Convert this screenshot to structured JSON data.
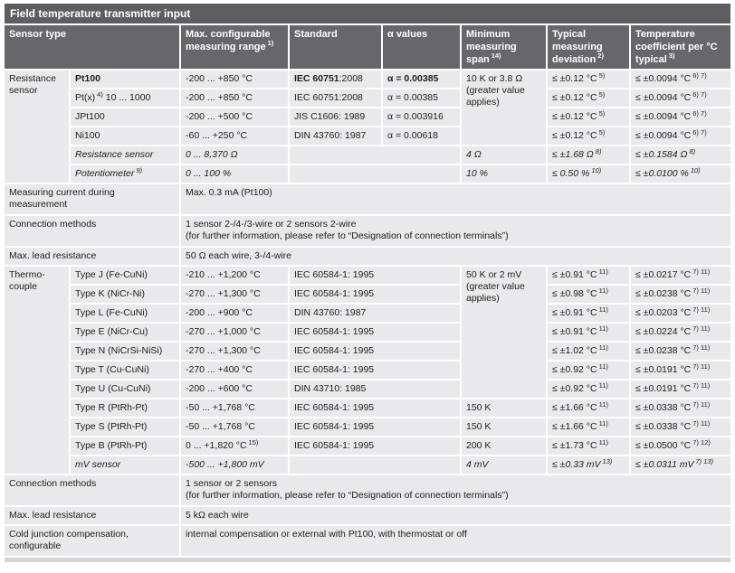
{
  "title": "Field temperature transmitter input",
  "colors": {
    "title_bg": "#5e5e62",
    "header_bg": "#67676b",
    "cell_bg": "#e9e9eb",
    "bottom_bar": "#d4d4d6",
    "text": "#1d1d1b"
  },
  "header": {
    "sensor_type": "Sensor type",
    "range": "Max. configurable measuring range",
    "range_sup": "1)",
    "standard": "Standard",
    "alpha": "α values",
    "span": "Minimum measuring span",
    "span_sup": "14)",
    "deviation": "Typical measuring deviation",
    "deviation_sup": "2)",
    "coefficient": "Temperature coefficient per °C typical",
    "coefficient_sup": "3)"
  },
  "resistance": {
    "group": "Resistance sensor",
    "shared_span": "10 K or 3.8 Ω (greater value applies)",
    "rows": [
      {
        "name": "Pt100",
        "range": "-200 ... +850 °C",
        "std_bold": "IEC 60751",
        "std": ":2008",
        "alpha": "α = 0.00385",
        "dev": "≤ ±0.12 °C",
        "dev_sup": "5)",
        "coef": "≤ ±0.0094 °C",
        "coef_sup": "6) 7)"
      },
      {
        "name": "Pt(x)",
        "name_sup": "4)",
        "name_post": " 10 ... 1000",
        "range": "-200 ... +850 °C",
        "std": "IEC 60751:2008",
        "alpha": "α = 0.00385",
        "dev": "≤ ±0.12 °C",
        "dev_sup": "5)",
        "coef": "≤ ±0.0094 °C",
        "coef_sup": "6) 7)"
      },
      {
        "name": "JPt100",
        "range": "-200 ... +500 °C",
        "std": "JIS C1606: 1989",
        "alpha": "α = 0.003916",
        "dev": "≤ ±0.12 °C",
        "dev_sup": "5)",
        "coef": "≤ ±0.0094 °C",
        "coef_sup": "6) 7)"
      },
      {
        "name": "Ni100",
        "range": "-60 ... +250 °C",
        "std": "DIN 43760: 1987",
        "alpha": "α = 0.00618",
        "dev": "≤ ±0.12 °C",
        "dev_sup": "5)",
        "coef": "≤ ±0.0094 °C",
        "coef_sup": "6) 7)"
      },
      {
        "name": "Resistance sensor",
        "range": "0 ... 8,370 Ω",
        "span": "4 Ω",
        "dev": "≤ ±1.68 Ω",
        "dev_sup": "8)",
        "coef": "≤ ±0.1584 Ω",
        "coef_sup": "8)"
      },
      {
        "name": "Potentiometer",
        "name_sup": "9)",
        "range": "0 ... 100 %",
        "span": "10 %",
        "dev": "≤ 0.50 %",
        "dev_sup": "10)",
        "coef": "≤ ±0.0100 %",
        "coef_sup": "10)"
      }
    ]
  },
  "mid_rows": [
    {
      "label": "Measuring current during measurement",
      "value": "Max. 0.3 mA (Pt100)"
    },
    {
      "label": "Connection methods",
      "value": "1 sensor 2-/4-/3-wire or 2 sensors 2-wire",
      "value2": "(for further information, please refer to “Designation of connection terminals”)"
    },
    {
      "label": "Max. lead resistance",
      "value": "50 Ω each wire, 3-/4-wire"
    }
  ],
  "thermocouple": {
    "group": "Thermo-couple",
    "shared_span": "50 K or 2 mV (greater value applies)",
    "rows": [
      {
        "name": "Type J (Fe-CuNi)",
        "range": "-210 ... +1,200 °C",
        "std": "IEC 60584-1: 1995",
        "dev": "≤ ±0.91 °C",
        "dev_sup": "11)",
        "coef": "≤ ±0.0217 °C",
        "coef_sup": "7) 11)"
      },
      {
        "name": "Type K (NiCr-Ni)",
        "range": "-270 ... +1,300 °C",
        "std": "IEC 60584-1: 1995",
        "dev": "≤ ±0.98 °C",
        "dev_sup": "11)",
        "coef": "≤ ±0.0238 °C",
        "coef_sup": "7) 11)"
      },
      {
        "name": "Type L (Fe-CuNi)",
        "range": "-200 ... +900 °C",
        "std": "DIN 43760: 1987",
        "dev": "≤ ±0.91 °C",
        "dev_sup": "11)",
        "coef": "≤ ±0.0203 °C",
        "coef_sup": "7) 11)"
      },
      {
        "name": "Type E (NiCr-Cu)",
        "range": "-270 ... +1,000 °C",
        "std": "IEC 60584-1: 1995",
        "dev": "≤ ±0.91 °C",
        "dev_sup": "11)",
        "coef": "≤ ±0.0224 °C",
        "coef_sup": "7) 11)"
      },
      {
        "name": "Type N (NiCrSi-NiSi)",
        "range": "-270 ... +1,300 °C",
        "std": "IEC 60584-1: 1995",
        "dev": "≤ ±1.02 °C",
        "dev_sup": "11)",
        "coef": "≤ ±0.0238 °C",
        "coef_sup": "7) 11)"
      },
      {
        "name": "Type T (Cu-CuNi)",
        "range": "-270 ... +400 °C",
        "std": "IEC 60584-1: 1995",
        "dev": "≤ ±0.92 °C",
        "dev_sup": "11)",
        "coef": "≤ ±0.0191 °C",
        "coef_sup": "7) 11)"
      },
      {
        "name": "Type U (Cu-CuNi)",
        "range": "-200 ... +600 °C",
        "std": "DIN 43710: 1985",
        "dev": "≤ ±0.92 °C",
        "dev_sup": "11)",
        "coef": "≤ ±0.0191 °C",
        "coef_sup": "7) 11)"
      },
      {
        "name": "Type R (PtRh-Pt)",
        "range": "-50 ... +1,768 °C",
        "std": "IEC 60584-1: 1995",
        "span": "150 K",
        "dev": "≤ ±1.66 °C",
        "dev_sup": "11)",
        "coef": "≤ ±0.0338 °C",
        "coef_sup": "7) 11)"
      },
      {
        "name": "Type S (PtRh-Pt)",
        "range": "-50 ... +1,768 °C",
        "std": "IEC 60584-1: 1995",
        "span": "150 K",
        "dev": "≤ ±1.66 °C",
        "dev_sup": "11)",
        "coef": "≤ ±0.0338 °C",
        "coef_sup": "7) 11)"
      },
      {
        "name": "Type B (PtRh-Pt)",
        "range": "0 ... +1,820 °C",
        "range_sup": "15)",
        "std": "IEC 60584-1: 1995",
        "span": "200 K",
        "dev": "≤ ±1.73 °C",
        "dev_sup": "11)",
        "coef": "≤ ±0.0500 °C",
        "coef_sup": "7) 12)"
      },
      {
        "name": "mV sensor",
        "range": "-500 ... +1,800 mV",
        "span": "4 mV",
        "dev": "≤ ±0.33 mV",
        "dev_sup": "13)",
        "coef": "≤ ±0.0311 mV",
        "coef_sup": "7) 13)"
      }
    ]
  },
  "bottom_rows": [
    {
      "label": "Connection methods",
      "value": "1 sensor or 2 sensors",
      "value2": "(for further information, please refer to “Designation of connection terminals”)"
    },
    {
      "label": "Max. lead resistance",
      "value": "5 kΩ each wire"
    },
    {
      "label": "Cold junction compensation, configurable",
      "value": "internal compensation or external with Pt100, with thermostat or off"
    }
  ]
}
